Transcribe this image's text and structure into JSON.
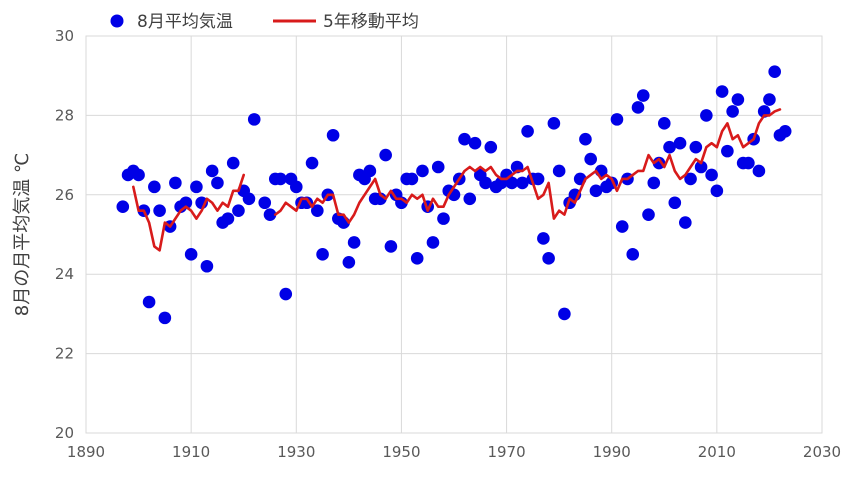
{
  "chart_data": {
    "type": "scatter",
    "xlabel": "",
    "ylabel": "8月の月平均気温 ℃",
    "xlim": [
      1890,
      2030
    ],
    "ylim": [
      20,
      30
    ],
    "xticks": [
      1890,
      1910,
      1930,
      1950,
      1970,
      1990,
      2010,
      2030
    ],
    "yticks": [
      20,
      22,
      24,
      26,
      28,
      30
    ],
    "grid": true,
    "legend_position": "top-left",
    "series": [
      {
        "name": "8月平均気温",
        "kind": "scatter",
        "color": "#0000E6",
        "points": [
          [
            1897,
            25.7
          ],
          [
            1898,
            26.5
          ],
          [
            1899,
            26.6
          ],
          [
            1900,
            26.5
          ],
          [
            1901,
            25.6
          ],
          [
            1902,
            23.3
          ],
          [
            1903,
            26.2
          ],
          [
            1904,
            25.6
          ],
          [
            1905,
            22.9
          ],
          [
            1906,
            25.2
          ],
          [
            1907,
            26.3
          ],
          [
            1908,
            25.7
          ],
          [
            1909,
            25.8
          ],
          [
            1910,
            24.5
          ],
          [
            1911,
            26.2
          ],
          [
            1912,
            25.8
          ],
          [
            1913,
            24.2
          ],
          [
            1914,
            26.6
          ],
          [
            1915,
            26.3
          ],
          [
            1916,
            25.3
          ],
          [
            1917,
            25.4
          ],
          [
            1918,
            26.8
          ],
          [
            1919,
            25.6
          ],
          [
            1920,
            26.1
          ],
          [
            1921,
            25.9
          ],
          [
            1922,
            27.9
          ],
          [
            1924,
            25.8
          ],
          [
            1925,
            25.5
          ],
          [
            1926,
            26.4
          ],
          [
            1927,
            26.4
          ],
          [
            1928,
            23.5
          ],
          [
            1929,
            26.4
          ],
          [
            1930,
            26.2
          ],
          [
            1931,
            25.8
          ],
          [
            1932,
            25.8
          ],
          [
            1933,
            26.8
          ],
          [
            1934,
            25.6
          ],
          [
            1935,
            24.5
          ],
          [
            1936,
            26.0
          ],
          [
            1937,
            27.5
          ],
          [
            1938,
            25.4
          ],
          [
            1939,
            25.3
          ],
          [
            1940,
            24.3
          ],
          [
            1941,
            24.8
          ],
          [
            1942,
            26.5
          ],
          [
            1943,
            26.4
          ],
          [
            1944,
            26.6
          ],
          [
            1945,
            25.9
          ],
          [
            1946,
            25.9
          ],
          [
            1947,
            27.0
          ],
          [
            1948,
            24.7
          ],
          [
            1949,
            26.0
          ],
          [
            1950,
            25.8
          ],
          [
            1951,
            26.4
          ],
          [
            1952,
            26.4
          ],
          [
            1953,
            24.4
          ],
          [
            1954,
            26.6
          ],
          [
            1955,
            25.7
          ],
          [
            1956,
            24.8
          ],
          [
            1957,
            26.7
          ],
          [
            1958,
            25.4
          ],
          [
            1959,
            26.1
          ],
          [
            1960,
            26.0
          ],
          [
            1961,
            26.4
          ],
          [
            1962,
            27.4
          ],
          [
            1963,
            25.9
          ],
          [
            1964,
            27.3
          ],
          [
            1965,
            26.5
          ],
          [
            1966,
            26.3
          ],
          [
            1967,
            27.2
          ],
          [
            1968,
            26.2
          ],
          [
            1969,
            26.3
          ],
          [
            1970,
            26.5
          ],
          [
            1971,
            26.3
          ],
          [
            1972,
            26.7
          ],
          [
            1973,
            26.3
          ],
          [
            1974,
            27.6
          ],
          [
            1975,
            26.4
          ],
          [
            1976,
            26.4
          ],
          [
            1977,
            24.9
          ],
          [
            1978,
            24.4
          ],
          [
            1979,
            27.8
          ],
          [
            1980,
            26.6
          ],
          [
            1981,
            23.0
          ],
          [
            1982,
            25.8
          ],
          [
            1983,
            26.0
          ],
          [
            1984,
            26.4
          ],
          [
            1985,
            27.4
          ],
          [
            1986,
            26.9
          ],
          [
            1987,
            26.1
          ],
          [
            1988,
            26.6
          ],
          [
            1989,
            26.2
          ],
          [
            1990,
            26.3
          ],
          [
            1991,
            27.9
          ],
          [
            1992,
            25.2
          ],
          [
            1993,
            26.4
          ],
          [
            1994,
            24.5
          ],
          [
            1995,
            28.2
          ],
          [
            1996,
            28.5
          ],
          [
            1997,
            25.5
          ],
          [
            1998,
            26.3
          ],
          [
            1999,
            26.8
          ],
          [
            2000,
            27.8
          ],
          [
            2001,
            27.2
          ],
          [
            2002,
            25.8
          ],
          [
            2003,
            27.3
          ],
          [
            2004,
            25.3
          ],
          [
            2005,
            26.4
          ],
          [
            2006,
            27.2
          ],
          [
            2007,
            26.7
          ],
          [
            2008,
            28.0
          ],
          [
            2009,
            26.5
          ],
          [
            2010,
            26.1
          ],
          [
            2011,
            28.6
          ],
          [
            2012,
            27.1
          ],
          [
            2013,
            28.1
          ],
          [
            2014,
            28.4
          ],
          [
            2015,
            26.8
          ],
          [
            2016,
            26.8
          ],
          [
            2017,
            27.4
          ],
          [
            2018,
            26.6
          ],
          [
            2019,
            28.1
          ],
          [
            2020,
            28.4
          ],
          [
            2021,
            29.1
          ],
          [
            2022,
            27.5
          ],
          [
            2023,
            27.6
          ]
        ]
      },
      {
        "name": "5年移動平均",
        "kind": "line",
        "color": "#D81B1B",
        "points": [
          [
            1899,
            26.2
          ],
          [
            1900,
            25.6
          ],
          [
            1901,
            25.6
          ],
          [
            1902,
            25.3
          ],
          [
            1903,
            24.7
          ],
          [
            1904,
            24.6
          ],
          [
            1905,
            25.3
          ],
          [
            1906,
            25.2
          ],
          [
            1907,
            25.4
          ],
          [
            1908,
            25.6
          ],
          [
            1909,
            25.7
          ],
          [
            1910,
            25.6
          ],
          [
            1911,
            25.4
          ],
          [
            1912,
            25.6
          ],
          [
            1913,
            25.9
          ],
          [
            1914,
            25.8
          ],
          [
            1915,
            25.6
          ],
          [
            1916,
            25.8
          ],
          [
            1917,
            25.7
          ],
          [
            1918,
            26.1
          ],
          [
            1919,
            26.1
          ],
          [
            1920,
            26.5
          ],
          [
            1926,
            25.5
          ],
          [
            1927,
            25.6
          ],
          [
            1928,
            25.8
          ],
          [
            1929,
            25.7
          ],
          [
            1930,
            25.6
          ],
          [
            1931,
            25.9
          ],
          [
            1932,
            25.9
          ],
          [
            1933,
            25.7
          ],
          [
            1934,
            25.9
          ],
          [
            1935,
            25.8
          ],
          [
            1936,
            26.0
          ],
          [
            1937,
            26.0
          ],
          [
            1938,
            25.5
          ],
          [
            1939,
            25.5
          ],
          [
            1940,
            25.3
          ],
          [
            1941,
            25.5
          ],
          [
            1942,
            25.8
          ],
          [
            1943,
            26.0
          ],
          [
            1944,
            26.2
          ],
          [
            1945,
            26.4
          ],
          [
            1946,
            26.0
          ],
          [
            1947,
            25.9
          ],
          [
            1948,
            26.1
          ],
          [
            1949,
            25.9
          ],
          [
            1950,
            25.9
          ],
          [
            1951,
            25.8
          ],
          [
            1952,
            26.0
          ],
          [
            1953,
            25.9
          ],
          [
            1954,
            26.0
          ],
          [
            1955,
            25.6
          ],
          [
            1956,
            25.9
          ],
          [
            1957,
            25.7
          ],
          [
            1958,
            25.7
          ],
          [
            1959,
            26.0
          ],
          [
            1960,
            26.2
          ],
          [
            1961,
            26.4
          ],
          [
            1962,
            26.6
          ],
          [
            1963,
            26.7
          ],
          [
            1964,
            26.6
          ],
          [
            1965,
            26.7
          ],
          [
            1966,
            26.6
          ],
          [
            1967,
            26.7
          ],
          [
            1968,
            26.5
          ],
          [
            1969,
            26.4
          ],
          [
            1970,
            26.4
          ],
          [
            1971,
            26.5
          ],
          [
            1972,
            26.6
          ],
          [
            1973,
            26.6
          ],
          [
            1974,
            26.7
          ],
          [
            1975,
            26.3
          ],
          [
            1976,
            25.9
          ],
          [
            1977,
            26.0
          ],
          [
            1978,
            26.3
          ],
          [
            1979,
            25.4
          ],
          [
            1980,
            25.6
          ],
          [
            1981,
            25.5
          ],
          [
            1982,
            25.9
          ],
          [
            1983,
            25.8
          ],
          [
            1984,
            26.1
          ],
          [
            1985,
            26.4
          ],
          [
            1986,
            26.5
          ],
          [
            1987,
            26.6
          ],
          [
            1988,
            26.4
          ],
          [
            1989,
            26.5
          ],
          [
            1990,
            26.4
          ],
          [
            1991,
            26.1
          ],
          [
            1992,
            26.4
          ],
          [
            1993,
            26.4
          ],
          [
            1994,
            26.5
          ],
          [
            1995,
            26.6
          ],
          [
            1996,
            26.6
          ],
          [
            1997,
            27.0
          ],
          [
            1998,
            26.8
          ],
          [
            1999,
            26.9
          ],
          [
            2000,
            26.7
          ],
          [
            2001,
            27.0
          ],
          [
            2002,
            26.6
          ],
          [
            2003,
            26.4
          ],
          [
            2004,
            26.5
          ],
          [
            2005,
            26.7
          ],
          [
            2006,
            26.9
          ],
          [
            2007,
            26.8
          ],
          [
            2008,
            27.2
          ],
          [
            2009,
            27.3
          ],
          [
            2010,
            27.2
          ],
          [
            2011,
            27.6
          ],
          [
            2012,
            27.8
          ],
          [
            2013,
            27.4
          ],
          [
            2014,
            27.5
          ],
          [
            2015,
            27.2
          ],
          [
            2016,
            27.3
          ],
          [
            2017,
            27.4
          ],
          [
            2018,
            27.8
          ],
          [
            2019,
            28.0
          ],
          [
            2020,
            28.0
          ],
          [
            2021,
            28.1
          ],
          [
            2022,
            28.15
          ]
        ]
      }
    ]
  }
}
